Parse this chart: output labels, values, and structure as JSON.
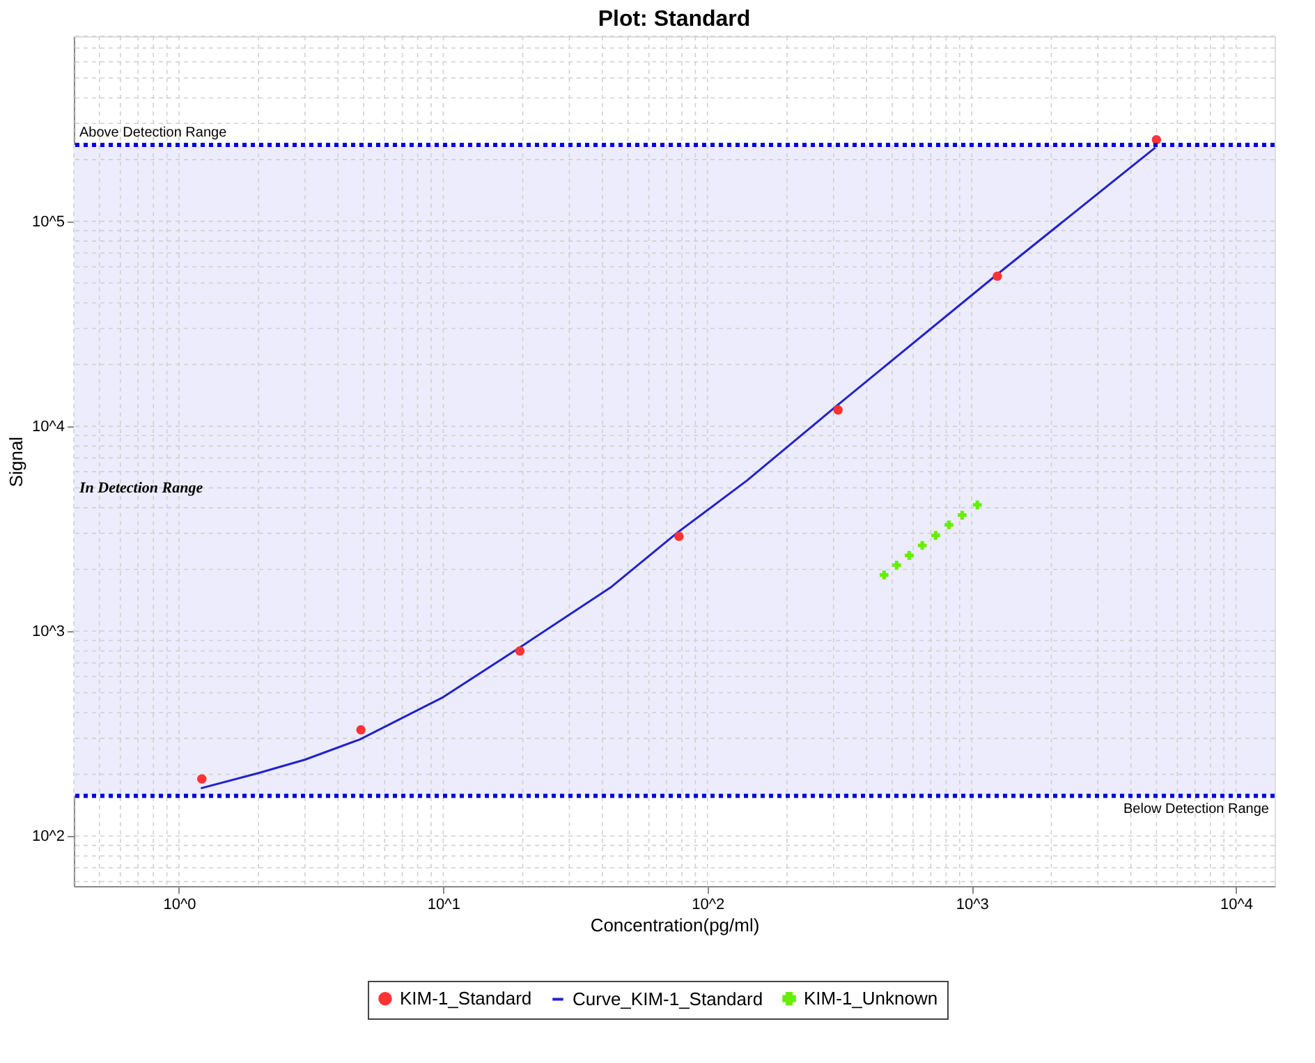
{
  "chart_data": {
    "type": "scatter",
    "title": "Plot: Standard",
    "xlabel": "Concentration(pg/ml)",
    "ylabel": "Signal",
    "log": "xy",
    "grid": true,
    "legend": "bottom",
    "xlim": [
      0.4,
      14000
    ],
    "ylim": [
      57,
      800000
    ],
    "xticks": [
      {
        "value": 1,
        "label": "10^0"
      },
      {
        "value": 10,
        "label": "10^1"
      },
      {
        "value": 100,
        "label": "10^2"
      },
      {
        "value": 1000,
        "label": "10^3"
      },
      {
        "value": 10000,
        "label": "10^4"
      }
    ],
    "yticks": [
      {
        "value": 100,
        "label": "10^2"
      },
      {
        "value": 1000,
        "label": "10^3"
      },
      {
        "value": 10000,
        "label": "10^4"
      },
      {
        "value": 100000,
        "label": "10^5"
      }
    ],
    "series": [
      {
        "name": "KIM-1_Standard",
        "type": "scatter",
        "marker": "circle",
        "color": "#ff3333",
        "x": [
          1.22,
          4.88,
          19.5,
          78,
          312,
          1250,
          5000
        ],
        "values": [
          190,
          330,
          800,
          2900,
          12000,
          54000,
          250000
        ]
      },
      {
        "name": "Curve_KIM-1_Standard",
        "type": "line",
        "marker": "none",
        "line_style": "solid",
        "color": "#2222cc",
        "x": [
          1.21,
          2.0,
          3.0,
          4.83,
          9.9,
          19.3,
          42.9,
          77.8,
          141,
          311,
          1240,
          4950
        ],
        "values": [
          171,
          203,
          236,
          296,
          473,
          826,
          1630,
          3060,
          5430,
          12700,
          54700,
          229000
        ]
      },
      {
        "name": "KIM-1_Unknown",
        "type": "scatter",
        "marker": "cross",
        "color": "#66ee00",
        "x": [
          466,
          520,
          580,
          650,
          730,
          820,
          920,
          1050
        ],
        "values": [
          1880,
          2100,
          2340,
          2620,
          2930,
          3300,
          3680,
          4130
        ]
      }
    ],
    "bands": [
      {
        "axis": "y",
        "from": 157,
        "to": 236000,
        "label": "In Detection Range",
        "color": "#ececfc"
      }
    ],
    "ref_lines": [
      {
        "axis": "y",
        "value": 236000,
        "label": "Above Detection Range",
        "color": "#0000dd",
        "line_style": "dotted"
      },
      {
        "axis": "y",
        "value": 157,
        "label": "Below Detection Range",
        "color": "#0000dd",
        "line_style": "dotted"
      }
    ]
  }
}
